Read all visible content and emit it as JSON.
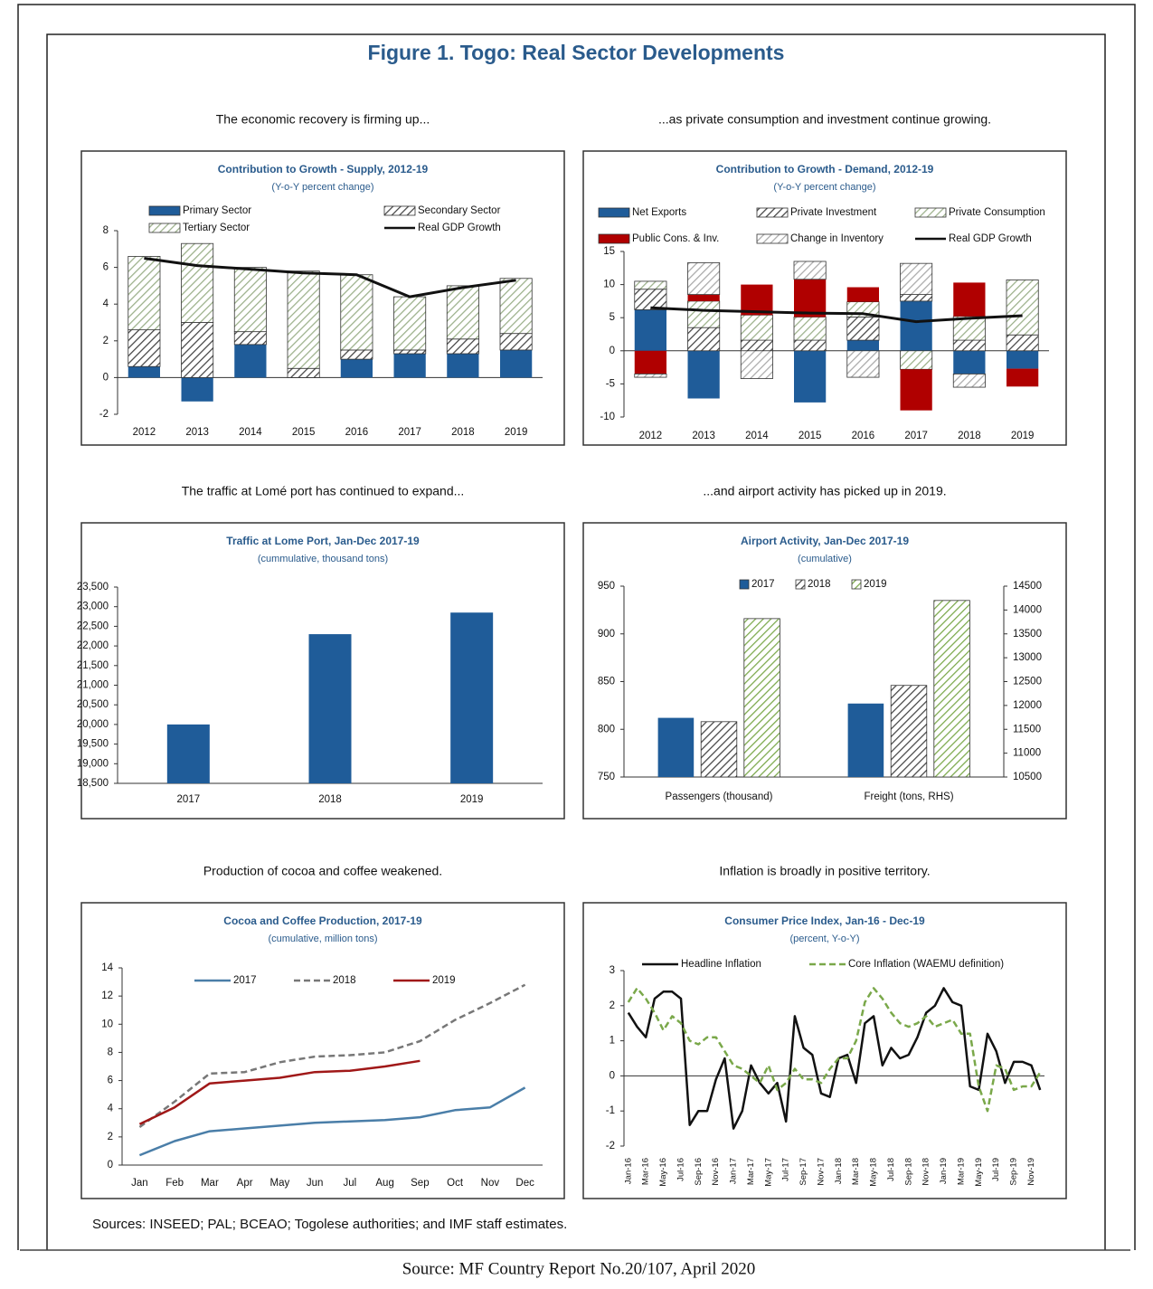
{
  "title": "Figure 1. Togo: Real Sector Developments",
  "sources": "Sources: INSEED; PAL; BCEAO; Togolese authorities; and IMF staff estimates.",
  "footer": "Source: MF Country Report No.20/107, April 2020",
  "chart_data": [
    {
      "type": "bar",
      "stacked": true,
      "caption": "The economic recovery is firming up...",
      "title": "Contribution to Growth - Supply, 2012-19",
      "subtitle": "(Y-o-Y percent change)",
      "categories": [
        "2012",
        "2013",
        "2014",
        "2015",
        "2016",
        "2017",
        "2018",
        "2019"
      ],
      "ylim": [
        -2,
        8
      ],
      "yticks": [
        -2,
        0,
        2,
        4,
        6,
        8
      ],
      "series": [
        {
          "name": "Primary Sector",
          "color": "#1f5c99",
          "values": [
            0.6,
            -1.3,
            1.8,
            0,
            1.0,
            1.3,
            1.3,
            1.5
          ]
        },
        {
          "name": "Secondary Sector",
          "color": "#444444",
          "pattern": "hatch",
          "values": [
            2.0,
            3.0,
            0.7,
            0.5,
            0.5,
            0.2,
            0.8,
            0.9
          ]
        },
        {
          "name": "Tertiary Sector",
          "color": "#9bb08a",
          "pattern": "hatch",
          "values": [
            4.0,
            4.3,
            3.5,
            5.3,
            4.1,
            2.9,
            2.9,
            3.0
          ]
        },
        {
          "name": "Real GDP Growth",
          "type": "line",
          "color": "#111111",
          "values": [
            6.5,
            6.1,
            5.9,
            5.7,
            5.6,
            4.4,
            4.9,
            5.3
          ]
        }
      ]
    },
    {
      "type": "bar",
      "stacked": true,
      "caption": "...as private consumption and investment continue growing.",
      "title": "Contribution to Growth - Demand, 2012-19",
      "subtitle": "(Y-o-Y percent change)",
      "categories": [
        "2012",
        "2013",
        "2014",
        "2015",
        "2016",
        "2017",
        "2018",
        "2019"
      ],
      "ylim": [
        -10,
        15
      ],
      "yticks": [
        -10,
        -5,
        0,
        5,
        10,
        15
      ],
      "series": [
        {
          "name": "Net Exports",
          "color": "#1f5c99",
          "values": [
            6.2,
            -7.2,
            0,
            -7.8,
            1.6,
            7.5,
            -3.5,
            -2.7
          ]
        },
        {
          "name": "Private Investment",
          "color": "#444444",
          "pattern": "hatch",
          "values": [
            3.1,
            3.5,
            1.6,
            1.6,
            3.5,
            1.0,
            1.6,
            2.4
          ]
        },
        {
          "name": "Private Consumption",
          "color": "#9bb08a",
          "pattern": "hatch",
          "values": [
            1.2,
            4.0,
            3.8,
            3.5,
            2.3,
            -2.8,
            3.6,
            8.3
          ]
        },
        {
          "name": "Public Cons. & Inv.",
          "color": "#b00000",
          "values": [
            -3.5,
            1.0,
            4.6,
            5.7,
            2.2,
            -6.2,
            5.1,
            -2.7
          ]
        },
        {
          "name": "Change in Inventory",
          "color": "#aaaaaa",
          "pattern": "hatch",
          "values": [
            -0.5,
            4.8,
            -4.2,
            2.7,
            -4.0,
            4.7,
            -2.0,
            0
          ]
        },
        {
          "name": "Real GDP Growth",
          "type": "line",
          "color": "#111111",
          "values": [
            6.5,
            6.1,
            5.9,
            5.7,
            5.6,
            4.4,
            4.9,
            5.3
          ]
        }
      ]
    },
    {
      "type": "bar",
      "caption": "The traffic at Lomé port has continued to expand...",
      "title": "Traffic at Lome Port, Jan-Dec 2017-19",
      "subtitle": "(cummulative, thousand tons)",
      "categories": [
        "2017",
        "2018",
        "2019"
      ],
      "values": [
        20000,
        22300,
        22850
      ],
      "color": "#1f5c99",
      "ylim": [
        18500,
        23500
      ],
      "yticks": [
        {
          "value": 18500,
          "label": "18,500"
        },
        {
          "value": 19000,
          "label": "19,000"
        },
        {
          "value": 19500,
          "label": "19,500"
        },
        {
          "value": 20000,
          "label": "20,000"
        },
        {
          "value": 20500,
          "label": "20,500"
        },
        {
          "value": 21000,
          "label": "21,000"
        },
        {
          "value": 21500,
          "label": "21,500"
        },
        {
          "value": 22000,
          "label": "22,000"
        },
        {
          "value": 22500,
          "label": "22,500"
        },
        {
          "value": 23000,
          "label": "23,000"
        },
        {
          "value": 23500,
          "label": "23,500"
        }
      ]
    },
    {
      "type": "bar",
      "caption": "...and airport activity has picked up in 2019.",
      "title": "Airport Activity, Jan-Dec 2017-19",
      "subtitle": "(cumulative)",
      "categories": [
        "Passengers (thousand)",
        "Freight (tons, RHS)"
      ],
      "category_axes": [
        "y",
        "y2"
      ],
      "ylim": [
        750,
        950
      ],
      "yticks": [
        750,
        800,
        850,
        900,
        950
      ],
      "y2lim": [
        10500,
        14500
      ],
      "y2ticks": [
        10500,
        11000,
        11500,
        12000,
        12500,
        13000,
        13500,
        14000,
        14500
      ],
      "series": [
        {
          "name": "2017",
          "color": "#1f5c99",
          "values": [
            812,
            12040
          ]
        },
        {
          "name": "2018",
          "color": "#444444",
          "pattern": "hatch",
          "values": [
            808,
            12420
          ]
        },
        {
          "name": "2019",
          "color": "#7aa84a",
          "pattern": "hatch",
          "values": [
            916,
            14200
          ]
        }
      ]
    },
    {
      "type": "line",
      "caption": "Production of cocoa and coffee weakened.",
      "title": "Cocoa and Coffee Production, 2017-19",
      "subtitle": "(cumulative, million tons)",
      "categories": [
        "Jan",
        "Feb",
        "Mar",
        "Apr",
        "May",
        "Jun",
        "Jul",
        "Aug",
        "Sep",
        "Oct",
        "Nov",
        "Dec"
      ],
      "ylim": [
        0,
        14
      ],
      "yticks": [
        0,
        2,
        4,
        6,
        8,
        10,
        12,
        14
      ],
      "series": [
        {
          "name": "2017",
          "color": "#4a7ea8",
          "values": [
            0.7,
            1.7,
            2.4,
            2.6,
            2.8,
            3.0,
            3.1,
            3.2,
            3.4,
            3.9,
            4.1,
            5.5
          ]
        },
        {
          "name": "2018",
          "color": "#777777",
          "dash": true,
          "values": [
            2.7,
            4.5,
            6.5,
            6.6,
            7.3,
            7.7,
            7.8,
            8.0,
            8.8,
            10.3,
            11.5,
            12.8
          ]
        },
        {
          "name": "2019",
          "color": "#a01818",
          "values": [
            2.9,
            4.1,
            5.8,
            6.0,
            6.2,
            6.6,
            6.7,
            7.0,
            7.4,
            null,
            null,
            null
          ]
        }
      ]
    },
    {
      "type": "line",
      "caption": "Inflation is broadly in positive territory.",
      "title": "Consumer Price Index, Jan-16 - Dec-19",
      "subtitle": "(percent, Y-o-Y)",
      "categories": [
        "Jan-16",
        null,
        "Mar-16",
        null,
        "May-16",
        null,
        "Jul-16",
        null,
        "Sep-16",
        null,
        "Nov-16",
        null,
        "Jan-17",
        null,
        "Mar-17",
        null,
        "May-17",
        null,
        "Jul-17",
        null,
        "Sep-17",
        null,
        "Nov-17",
        null,
        "Jan-18",
        null,
        "Mar-18",
        null,
        "May-18",
        null,
        "Jul-18",
        null,
        "Sep-18",
        null,
        "Nov-18",
        null,
        "Jan-19",
        null,
        "Mar-19",
        null,
        "May-19",
        null,
        "Jul-19",
        null,
        "Sep-19",
        null,
        "Nov-19",
        null
      ],
      "ylim": [
        -2,
        3
      ],
      "yticks": [
        -2,
        -1,
        0,
        1,
        2,
        3
      ],
      "series": [
        {
          "name": "Headline Inflation",
          "color": "#111111",
          "values": [
            1.8,
            1.4,
            1.1,
            2.2,
            2.4,
            2.4,
            2.2,
            -1.4,
            -1.0,
            -1.0,
            -0.1,
            0.5,
            -1.5,
            -1.0,
            0.3,
            -0.2,
            -0.5,
            -0.2,
            -1.3,
            1.7,
            0.8,
            0.6,
            -0.5,
            -0.6,
            0.5,
            0.6,
            -0.2,
            1.5,
            1.7,
            0.3,
            0.8,
            0.5,
            0.6,
            1.1,
            1.8,
            2.0,
            2.5,
            2.1,
            2.0,
            -0.3,
            -0.4,
            1.2,
            0.7,
            -0.2,
            0.4,
            0.4,
            0.3,
            -0.4
          ]
        },
        {
          "name": "Core Inflation (WAEMU definition)",
          "color": "#7aa84a",
          "dash": true,
          "values": [
            2.1,
            2.5,
            2.2,
            1.8,
            1.3,
            1.7,
            1.5,
            1.0,
            0.9,
            1.1,
            1.1,
            0.7,
            0.3,
            0.2,
            0,
            -0.2,
            0.3,
            -0.4,
            -0.2,
            0.2,
            -0.1,
            -0.1,
            -0.2,
            0.2,
            0.5,
            0.5,
            1.0,
            2.1,
            2.5,
            2.2,
            1.8,
            1.5,
            1.4,
            1.5,
            1.7,
            1.4,
            1.5,
            1.6,
            1.2,
            1.2,
            -0.3,
            -1.0,
            0.3,
            0.2,
            -0.4,
            -0.3,
            -0.3,
            0.1
          ]
        }
      ]
    }
  ]
}
